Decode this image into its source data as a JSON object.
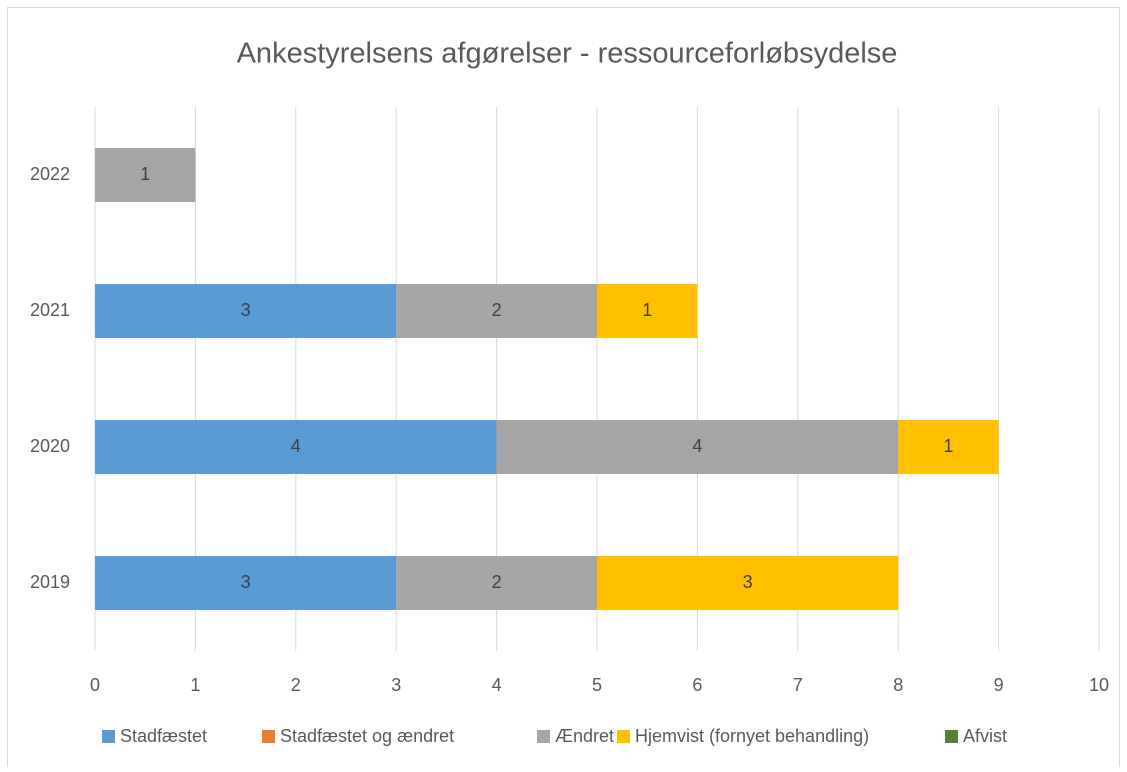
{
  "chart_data": {
    "type": "stacked-barh",
    "title": "Ankestyrelsens afgørelser - ressourceforløbsydelse",
    "categories": [
      "2019",
      "2020",
      "2021",
      "2022"
    ],
    "series": [
      {
        "name": "Stadfæstet",
        "color": "#5b9bd5",
        "values": [
          3,
          4,
          3,
          0
        ]
      },
      {
        "name": "Stadfæstet og ændret",
        "color": "#ed7d31",
        "values": [
          0,
          0,
          0,
          0
        ]
      },
      {
        "name": "Ændret",
        "color": "#a5a5a5",
        "values": [
          2,
          4,
          2,
          1
        ]
      },
      {
        "name": "Hjemvist (fornyet behandling)",
        "color": "#ffc000",
        "values": [
          3,
          1,
          1,
          0
        ]
      },
      {
        "name": "Afvist",
        "color": "#548235",
        "values": [
          0,
          0,
          0,
          0
        ]
      }
    ],
    "xlim": [
      0,
      10
    ],
    "xticks": [
      0,
      1,
      2,
      3,
      4,
      5,
      6,
      7,
      8,
      9,
      10
    ],
    "grid": true,
    "legend": "bottom"
  }
}
